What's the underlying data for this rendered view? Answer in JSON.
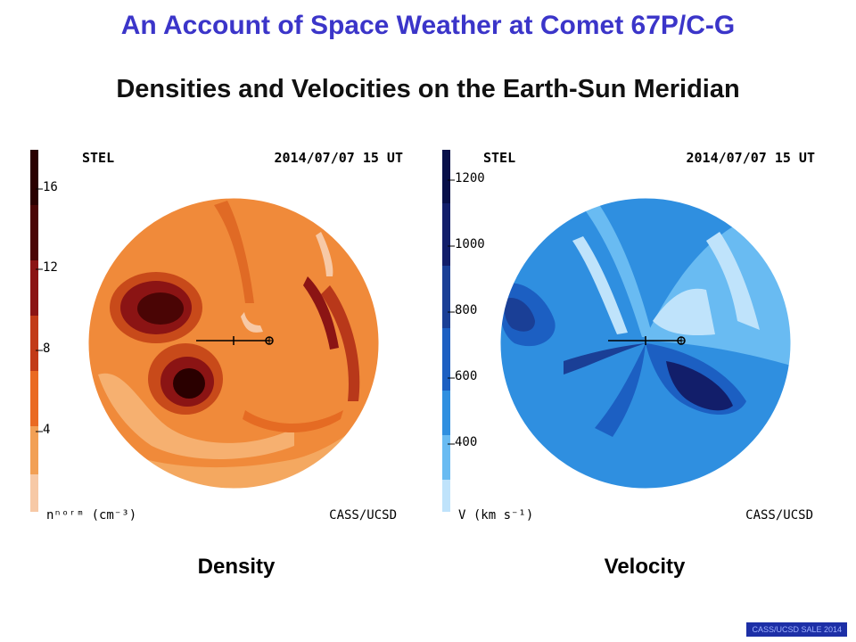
{
  "title": "An Account of Space Weather at Comet 67P/C-G",
  "subtitle": "Densities and Velocities on the Earth-Sun Meridian",
  "density": {
    "caption": "Density",
    "header_left": "STEL",
    "header_right": "2014/07/07 15 UT",
    "footer_right": "CASS/UCSD",
    "units_label": "nⁿᵒʳᵐ (cm⁻³)",
    "colorbar_ticks": [
      "16",
      "12",
      "8",
      "4"
    ],
    "colorbar_colors": [
      "#f7c9a6",
      "#f2a055",
      "#ea6a22",
      "#c23b18",
      "#8b1414",
      "#4a0505",
      "#2a0000"
    ]
  },
  "velocity": {
    "caption": "Velocity",
    "header_left": "STEL",
    "header_right": "2014/07/07 15 UT",
    "footer_right": "CASS/UCSD",
    "units_label": "V (km s⁻¹)",
    "colorbar_ticks": [
      "1200",
      "1000",
      "800",
      "600",
      "400"
    ],
    "colorbar_colors": [
      "#bfe3fb",
      "#69bbf2",
      "#2f8fe0",
      "#1c5fc2",
      "#1a3f96",
      "#121e6a",
      "#08104a"
    ]
  },
  "footer": "CASS/UCSD SALE 2014"
}
